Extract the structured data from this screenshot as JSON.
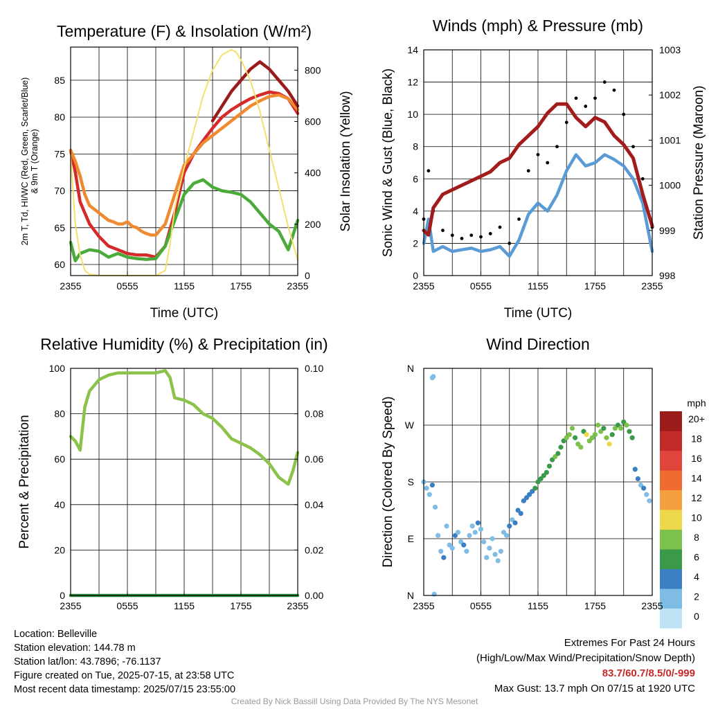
{
  "chart_data": [
    {
      "type": "line",
      "title": "Temperature (F) & Insolation (W/m²)",
      "xlabel": "Time (UTC)",
      "ylabel_lines": [
        "2m T, Td, HI/WC (Red, Green, Scarlet/Blue)",
        "& 9m T (Orange)"
      ],
      "y2label": "Solar Insolation (Yellow)",
      "x_ticks": [
        "2355",
        "0555",
        "1155",
        "1755",
        "2355"
      ],
      "ylim": [
        58.5,
        89.5
      ],
      "yticks": [
        60,
        65,
        70,
        75,
        80,
        85
      ],
      "y2lim": [
        0,
        890
      ],
      "y2ticks": [
        0,
        200,
        400,
        600,
        800
      ],
      "grid": true,
      "series": [
        {
          "color": "#d42a2a",
          "axis": "left",
          "x": [
            0,
            0.5,
            1,
            2,
            3,
            4,
            5,
            6,
            7,
            8,
            9,
            10,
            11,
            12,
            13,
            14,
            15,
            16,
            17,
            18,
            19,
            20,
            21,
            22,
            23,
            24
          ],
          "values": [
            75.5,
            72.5,
            68.5,
            65.5,
            63.8,
            62.5,
            62.0,
            61.5,
            61.3,
            61.3,
            61.0,
            62.5,
            67.0,
            72.5,
            75.0,
            76.8,
            78.5,
            80.0,
            81.0,
            81.8,
            82.5,
            83.0,
            83.4,
            83.2,
            82.5,
            80.5
          ]
        },
        {
          "color": "#f08a30",
          "axis": "left",
          "x": [
            0,
            0.5,
            1,
            1.5,
            2,
            2.5,
            3,
            3.5,
            4,
            4.5,
            5,
            5.5,
            6,
            6.5,
            7,
            7.5,
            8,
            8.5,
            9,
            10,
            11,
            12,
            13,
            14,
            15,
            16,
            17,
            18,
            19,
            20,
            21,
            22,
            23,
            24
          ],
          "values": [
            75.5,
            74.0,
            72.0,
            69.5,
            68.0,
            67.5,
            67.0,
            66.5,
            66.0,
            65.8,
            65.5,
            65.5,
            65.8,
            65.2,
            65.0,
            64.5,
            64.2,
            64.0,
            64.0,
            65.5,
            69.5,
            73.5,
            75.0,
            76.5,
            77.5,
            78.5,
            79.5,
            80.5,
            81.5,
            82.2,
            82.8,
            83.0,
            82.5,
            81.0
          ]
        },
        {
          "color": "#4aaa3a",
          "axis": "left",
          "x": [
            0,
            0.5,
            1,
            2,
            3,
            4,
            5,
            6,
            7,
            8,
            9,
            10,
            11,
            12,
            13,
            14,
            15,
            16,
            17,
            18,
            19,
            20,
            21,
            22,
            23,
            24
          ],
          "values": [
            63.0,
            60.5,
            61.5,
            62.0,
            61.8,
            61.0,
            61.5,
            61.0,
            60.8,
            60.7,
            60.8,
            62.5,
            66.0,
            69.5,
            71.0,
            71.5,
            70.5,
            70.0,
            69.8,
            69.5,
            68.5,
            67.0,
            65.5,
            64.5,
            62.0,
            66.0
          ]
        },
        {
          "color": "#9b1b1b",
          "axis": "left",
          "x": [
            15,
            16,
            17,
            18,
            19,
            20,
            21,
            22,
            23,
            24
          ],
          "values": [
            79.5,
            81.5,
            83.5,
            85.0,
            86.5,
            87.5,
            86.5,
            85.0,
            83.5,
            81.5
          ]
        },
        {
          "color": "#f5e06a",
          "axis": "right",
          "x": [
            0,
            0.5,
            1,
            1.5,
            2,
            3,
            4,
            5,
            6,
            7,
            8,
            9,
            10,
            10.5,
            11,
            12,
            13,
            14,
            15,
            16,
            17,
            17.5,
            18,
            19,
            20,
            21,
            22,
            23,
            24
          ],
          "values": [
            470,
            200,
            80,
            20,
            5,
            0,
            0,
            0,
            0,
            0,
            0,
            0,
            20,
            120,
            260,
            420,
            560,
            700,
            800,
            860,
            880,
            870,
            840,
            760,
            640,
            490,
            340,
            190,
            60
          ]
        }
      ]
    },
    {
      "type": "line",
      "title": "Winds (mph) & Pressure (mb)",
      "xlabel": "Time (UTC)",
      "ylabel": "Sonic Wind & Gust (Blue, Black)",
      "y2label": "Station Pressure (Maroon)",
      "x_ticks": [
        "2355",
        "0555",
        "1155",
        "1755",
        "2355"
      ],
      "ylim": [
        0,
        14
      ],
      "yticks": [
        0,
        2,
        4,
        6,
        8,
        10,
        12,
        14
      ],
      "y2lim": [
        998,
        1003
      ],
      "y2ticks": [
        998,
        999,
        1000,
        1001,
        1002,
        1003
      ],
      "grid": true,
      "series": [
        {
          "name": "Sonic Wind",
          "color": "#5b9bd5",
          "x": [
            0,
            0.5,
            1,
            2,
            3,
            4,
            5,
            6,
            7,
            8,
            9,
            10,
            11,
            12,
            13,
            14,
            15,
            16,
            17,
            18,
            19,
            20,
            21,
            22,
            23,
            24
          ],
          "values": [
            2.0,
            3.5,
            1.5,
            1.8,
            1.5,
            1.6,
            1.7,
            1.5,
            1.6,
            1.8,
            1.2,
            2.2,
            3.8,
            4.5,
            4.0,
            5.0,
            6.5,
            7.5,
            6.8,
            7.0,
            7.5,
            7.2,
            6.8,
            6.0,
            4.5,
            1.5
          ]
        },
        {
          "name": "Gust",
          "color": "#000000",
          "x": [
            0,
            0.5,
            1,
            2,
            3,
            4,
            5,
            6,
            7,
            8,
            9,
            10,
            11,
            12,
            13,
            14,
            15,
            16,
            17,
            18,
            19,
            20,
            21,
            22,
            23,
            24
          ],
          "values": [
            3.5,
            6.5,
            4.0,
            2.8,
            2.5,
            2.3,
            2.5,
            2.4,
            2.6,
            3.0,
            2.0,
            3.5,
            6.5,
            7.5,
            7.0,
            8.0,
            9.5,
            11.0,
            10.5,
            11.0,
            12.0,
            11.5,
            10.0,
            8.0,
            6.0,
            3.0
          ]
        },
        {
          "name": "Pressure",
          "color": "#a31c1c",
          "axis": "right",
          "x": [
            0,
            0.5,
            1,
            2,
            3,
            4,
            5,
            6,
            7,
            8,
            9,
            10,
            11,
            12,
            13,
            14,
            15,
            16,
            17,
            18,
            19,
            20,
            21,
            22,
            23,
            24
          ],
          "values": [
            999.0,
            998.9,
            999.5,
            999.8,
            999.9,
            1000.0,
            1000.1,
            1000.2,
            1000.3,
            1000.5,
            1000.6,
            1000.9,
            1001.1,
            1001.3,
            1001.6,
            1001.8,
            1001.8,
            1001.5,
            1001.3,
            1001.5,
            1001.4,
            1001.1,
            1000.9,
            1000.6,
            999.8,
            999.1
          ]
        }
      ]
    },
    {
      "type": "line",
      "title": "Relative Humidity (%) & Precipitation (in)",
      "ylabel": "Percent & Precipitation",
      "x_ticks": [
        "2355",
        "0555",
        "1155",
        "1755",
        "2355"
      ],
      "ylim": [
        0,
        100
      ],
      "yticks": [
        0,
        20,
        40,
        60,
        80,
        100
      ],
      "y2lim": [
        0,
        0.1
      ],
      "y2ticks": [
        "0.00",
        "0.02",
        "0.04",
        "0.06",
        "0.08",
        "0.10"
      ],
      "grid": true,
      "series": [
        {
          "name": "Relative Humidity",
          "color": "#8bc34a",
          "x": [
            0,
            0.5,
            1,
            1.5,
            2,
            3,
            4,
            5,
            6,
            7,
            8,
            9,
            10,
            10.5,
            11,
            12,
            13,
            14,
            15,
            16,
            17,
            18,
            19,
            20,
            21,
            22,
            23,
            23.5,
            24
          ],
          "values": [
            70,
            68,
            64,
            83,
            90,
            95,
            97,
            98,
            98,
            98,
            98,
            98,
            99,
            96,
            87,
            86,
            84,
            80,
            78,
            74,
            69,
            67,
            65,
            62,
            58,
            52,
            49,
            55,
            63
          ]
        },
        {
          "name": "Precipitation",
          "color": "#2e8b3a",
          "axis": "right",
          "x": [
            0,
            24
          ],
          "values": [
            0,
            0
          ]
        }
      ]
    },
    {
      "type": "scatter",
      "title": "Wind Direction",
      "ylabel": "Direction (Colored By Speed)",
      "x_ticks": [
        "2355",
        "0555",
        "1155",
        "1755",
        "2355"
      ],
      "yticks": [
        "N",
        "E",
        "S",
        "W",
        "N"
      ],
      "ylim": [
        0,
        360
      ],
      "grid": true,
      "legend": {
        "title": "mph",
        "labels": [
          "20+",
          "18",
          "16",
          "14",
          "12",
          "10",
          "8",
          "6",
          "4",
          "2",
          "0"
        ],
        "colors": [
          "#9b1b1b",
          "#c42a2a",
          "#e0443a",
          "#f06b30",
          "#f5a040",
          "#ecd84a",
          "#7cc24a",
          "#3a9a4a",
          "#3a7fc4",
          "#7fbde6",
          "#bde3f5"
        ]
      },
      "series": [
        {
          "x": [
            0,
            0.3,
            0.6,
            0.9,
            1.2,
            1.5,
            1.8,
            2.1,
            2.4,
            2.7,
            3.0,
            3.3,
            3.6,
            3.9,
            4.2,
            4.5,
            4.8,
            5.1,
            5.4,
            5.7,
            6.0,
            6.3,
            6.6,
            6.9,
            7.2,
            7.5,
            7.8,
            8.1,
            8.4,
            8.7,
            9.0,
            9.3,
            9.6,
            9.9,
            10.2,
            10.5,
            10.8,
            11.1,
            11.4,
            11.7,
            12.0,
            12.3,
            12.6,
            12.9,
            13.2,
            13.5,
            13.8,
            14.1,
            14.4,
            14.7,
            15.0,
            15.3,
            15.6,
            15.9,
            16.2,
            16.5,
            16.8,
            17.1,
            17.4,
            17.7,
            18.0,
            18.3,
            18.6,
            18.9,
            19.2,
            19.5,
            19.8,
            20.1,
            20.4,
            20.7,
            21.0,
            21.3,
            21.6,
            21.9,
            22.2,
            22.5,
            22.8,
            23.1,
            23.4,
            23.7
          ],
          "values": [
            180,
            170,
            160,
            175,
            140,
            95,
            70,
            60,
            110,
            80,
            75,
            95,
            100,
            85,
            80,
            70,
            95,
            110,
            100,
            115,
            105,
            85,
            60,
            75,
            90,
            65,
            55,
            70,
            100,
            95,
            110,
            120,
            115,
            135,
            130,
            150,
            155,
            160,
            165,
            170,
            180,
            185,
            190,
            195,
            205,
            215,
            220,
            225,
            235,
            245,
            250,
            255,
            265,
            250,
            240,
            235,
            260,
            255,
            245,
            250,
            255,
            270,
            260,
            265,
            250,
            240,
            255,
            265,
            270,
            265,
            275,
            270,
            260,
            250,
            200,
            185,
            175,
            170,
            160,
            150
          ],
          "speeds": [
            2,
            1,
            2,
            3,
            2,
            1,
            2,
            3,
            1,
            2,
            2,
            3,
            2,
            2,
            3,
            2,
            1,
            2,
            2,
            3,
            2,
            2,
            1,
            2,
            2,
            1,
            2,
            2,
            1,
            2,
            3,
            2,
            3,
            4,
            4,
            4,
            3,
            4,
            4,
            5,
            5,
            5,
            6,
            5,
            6,
            6,
            7,
            5,
            6,
            6,
            7,
            8,
            7,
            6,
            8,
            7,
            6,
            9,
            7,
            8,
            8,
            7,
            8,
            6,
            8,
            9,
            6,
            7,
            6,
            7,
            6,
            7,
            6,
            5,
            4,
            3,
            2,
            3,
            2,
            2
          ]
        },
        {
          "x": [
            0.9,
            1.0
          ],
          "values": [
            345,
            347
          ],
          "speeds": [
            1,
            1
          ]
        },
        {
          "x": [
            1.1
          ],
          "values": [
            2
          ],
          "speeds": [
            2
          ]
        }
      ]
    }
  ],
  "info": {
    "lines": [
      "Location: Belleville",
      "Station elevation: 144.78 m",
      "Station lat/lon: 43.7896; -76.1137",
      "Figure created on Tue, 2025-07-15, at 23:58 UTC",
      "Most recent data timestamp: 2025/07/15 23:55:00"
    ]
  },
  "extremes": {
    "heading": "Extremes For Past 24 Hours",
    "subheading": "(High/Low/Max Wind/Precipitation/Snow Depth)",
    "values": "83.7/60.7/8.5/0/-999",
    "values_color": "#c62828",
    "max_gust": "Max Gust: 13.7 mph On 07/15 at 1920 UTC"
  },
  "footer": "Created By Nick Bassill Using Data Provided By The NYS Mesonet"
}
